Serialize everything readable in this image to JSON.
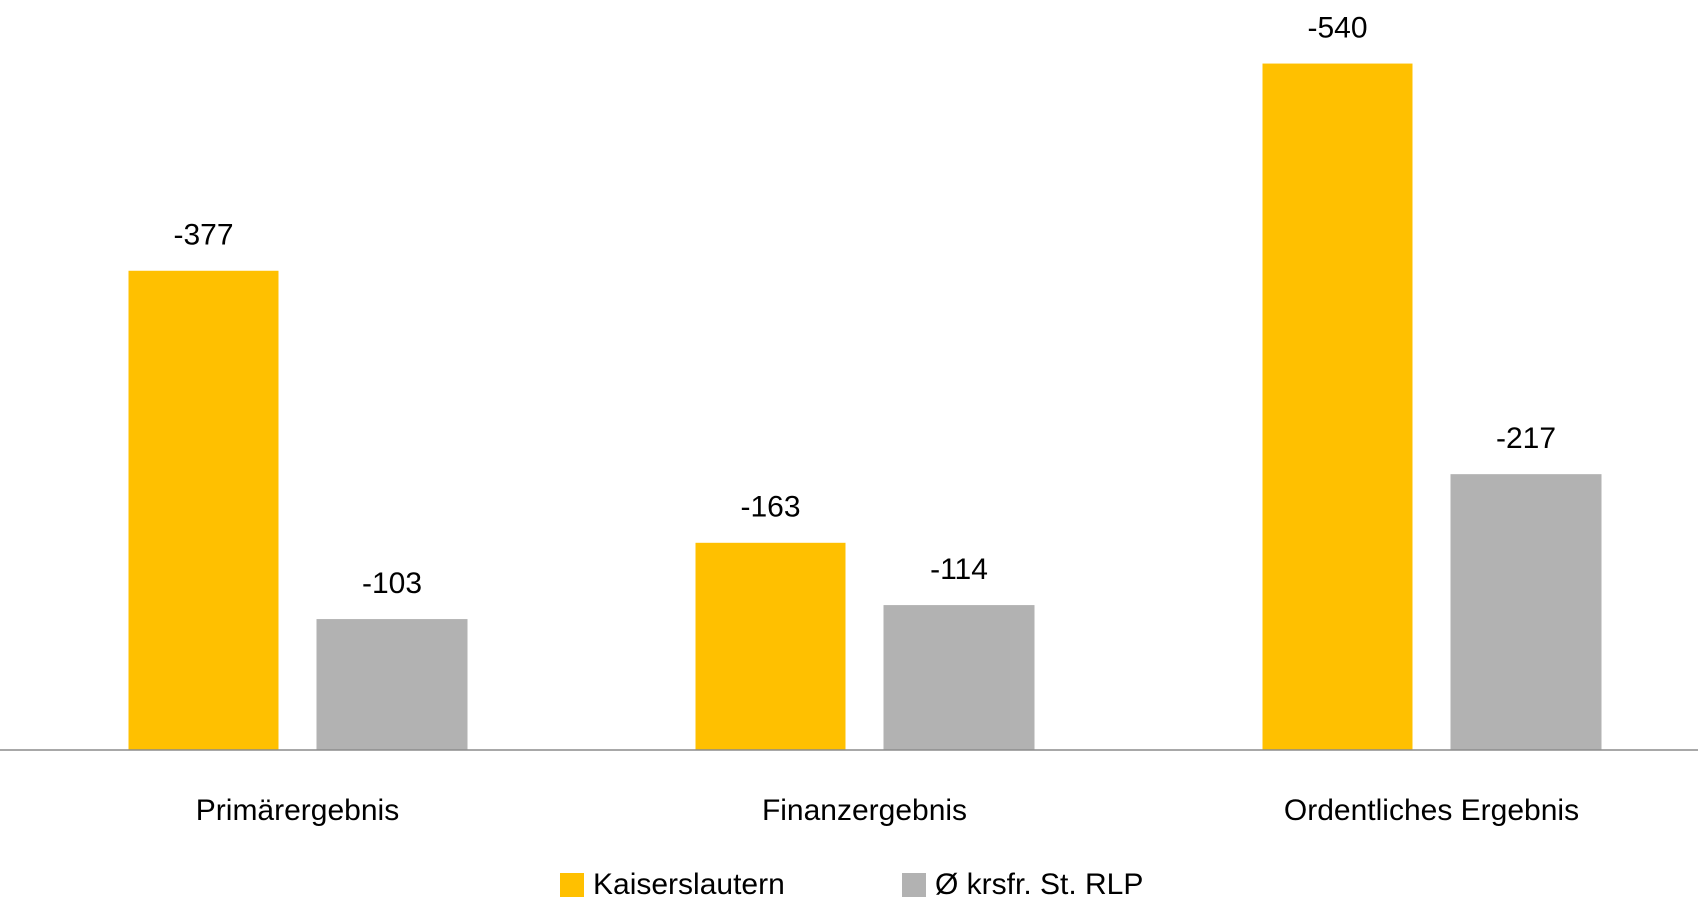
{
  "chart_data": {
    "type": "bar",
    "categories": [
      "Primärergebnis",
      "Finanzergebnis",
      "Ordentliches Ergebnis"
    ],
    "series": [
      {
        "name": "Kaiserslautern",
        "color": "#FFC000",
        "values": [
          -377,
          -163,
          -540
        ]
      },
      {
        "name": "Ø krsfr. St. RLP",
        "color": "#B2B2B2",
        "values": [
          -103,
          -114,
          -217
        ]
      }
    ],
    "ylim": [
      0,
      -590
    ],
    "legend": "bottom"
  }
}
